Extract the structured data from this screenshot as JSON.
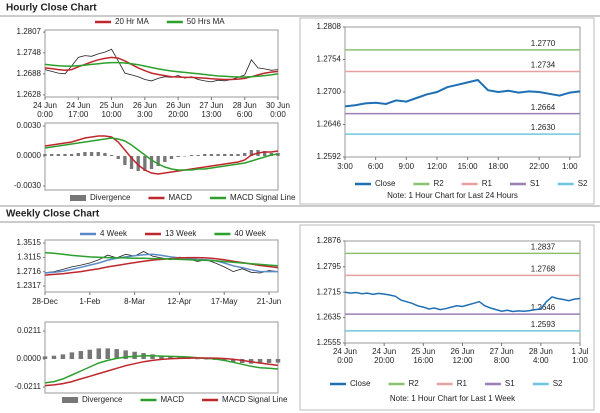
{
  "sections": [
    "Hourly Close Chart",
    "Weekly Close Chart"
  ],
  "chart_data": [
    {
      "type": "line",
      "legend": "top",
      "xlim": [
        0,
        35
      ],
      "ylim": [
        1.2622,
        1.2813
      ],
      "yticks": [
        1.2807,
        1.2748,
        1.2688,
        1.2628
      ],
      "xticks": [
        {
          "value": 0,
          "label": [
            "24 Jun",
            "0:00"
          ]
        },
        {
          "value": 5,
          "label": [
            "24 Jun",
            "17:00"
          ]
        },
        {
          "value": 10,
          "label": [
            "25 Jun",
            "10:00"
          ]
        },
        {
          "value": 15,
          "label": [
            "26 Jun",
            "3:00"
          ]
        },
        {
          "value": 20,
          "label": [
            "26 Jun",
            "20:00"
          ]
        },
        {
          "value": 25,
          "label": [
            "27 Jun",
            "13:00"
          ]
        },
        {
          "value": 30,
          "label": [
            "28 Jun",
            "6:00"
          ]
        },
        {
          "value": 35,
          "label": [
            "30 Jun",
            "0:00"
          ]
        }
      ],
      "series": [
        {
          "color": "#222222",
          "values": [
            1.27,
            1.2695,
            1.269,
            1.2688,
            1.271,
            1.2735,
            1.274,
            1.2738,
            1.2745,
            1.275,
            1.2758,
            1.2725,
            1.269,
            1.2685,
            1.268,
            1.2672,
            1.2668,
            1.2675,
            1.268,
            1.2678,
            1.2683,
            1.2676,
            1.268,
            1.2672,
            1.2668,
            1.2665,
            1.267,
            1.2668,
            1.2672,
            1.2678,
            1.2685,
            1.2728,
            1.2705,
            1.2702,
            1.2698,
            1.27
          ]
        },
        {
          "name": "20 Hr MA",
          "color": "#c0272d",
          "values": [
            1.2705,
            1.2703,
            1.27,
            1.2698,
            1.27,
            1.2708,
            1.2715,
            1.2722,
            1.2728,
            1.2732,
            1.2735,
            1.2733,
            1.2725,
            1.2715,
            1.2705,
            1.2697,
            1.269,
            1.2686,
            1.2683,
            1.268,
            1.2679,
            1.2678,
            1.2678,
            1.2677,
            1.2676,
            1.2674,
            1.2673,
            1.2672,
            1.2672,
            1.2673,
            1.2675,
            1.268,
            1.2685,
            1.269,
            1.2693,
            1.2695
          ]
        },
        {
          "name": "50 Hrs MA",
          "color": "#2ca02c",
          "values": [
            1.2715,
            1.2713,
            1.2711,
            1.271,
            1.271,
            1.2711,
            1.2713,
            1.2715,
            1.2717,
            1.2719,
            1.272,
            1.272,
            1.2719,
            1.2717,
            1.2714,
            1.271,
            1.2706,
            1.2702,
            1.2699,
            1.2696,
            1.2694,
            1.2692,
            1.269,
            1.2688,
            1.2686,
            1.2684,
            1.2682,
            1.2681,
            1.268,
            1.2679,
            1.2679,
            1.268,
            1.2681,
            1.2683,
            1.2685,
            1.2688
          ]
        }
      ]
    },
    {
      "type": "line",
      "legend": "bottom",
      "xlim": [
        0,
        35
      ],
      "ylim": [
        -0.0034,
        0.0033
      ],
      "yticks": [
        {
          "value": 0.003,
          "label": "0.0030"
        },
        {
          "value": 0,
          "label": "0.0000"
        },
        {
          "value": -0.003,
          "label": "-0.0030"
        }
      ],
      "series": [
        {
          "name": "Divergence",
          "type": "bar",
          "color": "#777777",
          "values": [
            0.0002,
            0.0002,
            0.0002,
            0.0002,
            0.0002,
            0.0003,
            0.0004,
            0.0004,
            0.0004,
            0.0003,
            0.0001,
            -0.0003,
            -0.0009,
            -0.0013,
            -0.0015,
            -0.0015,
            -0.0013,
            -0.001,
            -0.0006,
            -0.0003,
            -0.0001,
            0.0,
            0.0001,
            0.0001,
            0.0002,
            0.0002,
            0.0002,
            0.0002,
            0.0002,
            0.0002,
            0.0003,
            0.0006,
            0.0006,
            0.0005,
            0.0003,
            0.0003
          ]
        },
        {
          "name": "MACD",
          "color": "#c0272d",
          "values": [
            0.001,
            0.0011,
            0.0012,
            0.0013,
            0.0014,
            0.0016,
            0.0018,
            0.0019,
            0.002,
            0.002,
            0.0019,
            0.0014,
            0.0006,
            -0.0002,
            -0.0009,
            -0.0014,
            -0.0017,
            -0.0018,
            -0.0017,
            -0.0016,
            -0.0015,
            -0.0014,
            -0.0013,
            -0.0012,
            -0.0011,
            -0.001,
            -0.0009,
            -0.0008,
            -0.0007,
            -0.0006,
            -0.0004,
            0.0001,
            0.0003,
            0.0004,
            0.0004,
            0.0005
          ]
        },
        {
          "name": "MACD Signal Line",
          "color": "#2ca02c",
          "values": [
            0.0008,
            0.0009,
            0.001,
            0.0011,
            0.0012,
            0.0013,
            0.0014,
            0.0015,
            0.0016,
            0.0017,
            0.0018,
            0.0017,
            0.0015,
            0.0011,
            0.0006,
            0.0001,
            -0.0004,
            -0.0008,
            -0.0011,
            -0.0013,
            -0.0014,
            -0.0014,
            -0.0014,
            -0.0013,
            -0.0013,
            -0.0012,
            -0.0011,
            -0.001,
            -0.0009,
            -0.0008,
            -0.0007,
            -0.0005,
            -0.0003,
            -0.0001,
            0.0001,
            0.0002
          ]
        }
      ]
    },
    {
      "type": "line",
      "legend": "bottom",
      "note": "Note: 1 Hour Chart for Last 24 Hours",
      "xlim": [
        0,
        23
      ],
      "ylim": [
        1.2592,
        1.2808
      ],
      "yticks": [
        1.2808,
        1.2754,
        {
          "value": 1.27,
          "label": "1.2700"
        },
        1.2646,
        1.2592
      ],
      "xticks": [
        {
          "value": 0,
          "label": "3:00"
        },
        {
          "value": 3,
          "label": "6:00"
        },
        {
          "value": 6,
          "label": "9:00"
        },
        {
          "value": 9,
          "label": "12:00"
        },
        {
          "value": 12,
          "label": "15:00"
        },
        {
          "value": 15,
          "label": "18:00"
        },
        {
          "value": 19,
          "label": "22:00"
        },
        {
          "value": 22,
          "label": "1:00"
        }
      ],
      "series": [
        {
          "name": "Close",
          "color": "#1f6fb5",
          "width": 2,
          "values": [
            1.2676,
            1.2678,
            1.2681,
            1.2682,
            1.268,
            1.2686,
            1.2684,
            1.269,
            1.2696,
            1.27,
            1.2708,
            1.2712,
            1.2716,
            1.272,
            1.2703,
            1.27,
            1.2702,
            1.2699,
            1.2701,
            1.27,
            1.2697,
            1.2694,
            1.2699,
            1.2701
          ]
        }
      ],
      "levels": {
        "names": [
          "R2",
          "R1",
          "S1",
          "S2"
        ],
        "colors": [
          "#8dc26f",
          "#e8a0a0",
          "#9b7fb5",
          "#6ec6e0"
        ],
        "values": [
          1.277,
          1.2734,
          1.2664,
          1.263
        ],
        "value_labels": [
          "1.2770",
          "1.2734",
          "1.2664",
          "1.2630"
        ]
      }
    },
    {
      "type": "line",
      "legend": "top",
      "xlim": [
        0,
        26
      ],
      "ylim": [
        1.215,
        1.36
      ],
      "yticks": [
        1.3515,
        1.3115,
        1.2716,
        1.2317
      ],
      "xticks": [
        {
          "value": 0,
          "label": "28-Dec"
        },
        {
          "value": 5,
          "label": "1-Feb"
        },
        {
          "value": 10,
          "label": "8-Mar"
        },
        {
          "value": 15,
          "label": "12-Apr"
        },
        {
          "value": 20,
          "label": "17-May"
        },
        {
          "value": 25,
          "label": "21-Jun"
        }
      ],
      "series": [
        {
          "color": "#222222",
          "values": [
            1.269,
            1.272,
            1.278,
            1.285,
            1.29,
            1.296,
            1.305,
            1.318,
            1.31,
            1.32,
            1.315,
            1.328,
            1.315,
            1.31,
            1.305,
            1.312,
            1.308,
            1.3,
            1.305,
            1.296,
            1.285,
            1.272,
            1.28,
            1.27,
            1.268,
            1.275,
            1.2716
          ]
        },
        {
          "name": "4 Week",
          "color": "#5b8ac9",
          "values": [
            1.268,
            1.27,
            1.273,
            1.278,
            1.284,
            1.29,
            1.296,
            1.304,
            1.309,
            1.313,
            1.316,
            1.319,
            1.32,
            1.317,
            1.313,
            1.31,
            1.309,
            1.306,
            1.305,
            1.302,
            1.296,
            1.288,
            1.283,
            1.277,
            1.272,
            1.272,
            1.272
          ]
        },
        {
          "name": "13 Week",
          "color": "#c0272d",
          "values": [
            1.262,
            1.264,
            1.266,
            1.269,
            1.272,
            1.276,
            1.28,
            1.285,
            1.289,
            1.293,
            1.297,
            1.301,
            1.304,
            1.306,
            1.308,
            1.31,
            1.311,
            1.311,
            1.31,
            1.308,
            1.305,
            1.301,
            1.297,
            1.293,
            1.289,
            1.286,
            1.283
          ]
        },
        {
          "name": "40 Week",
          "color": "#2ca02c",
          "values": [
            1.325,
            1.323,
            1.32,
            1.317,
            1.315,
            1.313,
            1.312,
            1.311,
            1.31,
            1.31,
            1.309,
            1.309,
            1.308,
            1.308,
            1.307,
            1.306,
            1.305,
            1.304,
            1.303,
            1.302,
            1.3,
            1.298,
            1.296,
            1.294,
            1.292,
            1.29,
            1.288
          ]
        }
      ]
    },
    {
      "type": "line",
      "legend": "bottom",
      "xlim": [
        0,
        26
      ],
      "ylim": [
        -0.0256,
        0.0279
      ],
      "yticks": [
        0.0211,
        {
          "value": 0,
          "label": "0.0000"
        },
        -0.0211
      ],
      "series": [
        {
          "name": "Divergence",
          "type": "bar",
          "color": "#777777",
          "values": [
            0.002,
            0.0025,
            0.0035,
            0.005,
            0.006,
            0.007,
            0.008,
            0.008,
            0.0075,
            0.0065,
            0.0055,
            0.0045,
            0.0035,
            0.0025,
            0.0018,
            0.0013,
            0.0008,
            0.0002,
            -0.0003,
            -0.0007,
            -0.0014,
            -0.0023,
            -0.003,
            -0.0035,
            -0.0035,
            -0.003,
            -0.0027
          ]
        },
        {
          "name": "MACD",
          "color": "#2ca02c",
          "values": [
            -0.018,
            -0.017,
            -0.015,
            -0.012,
            -0.009,
            -0.006,
            -0.003,
            -0.001,
            0.0005,
            0.0015,
            0.002,
            0.0025,
            0.0025,
            0.0022,
            0.002,
            0.0018,
            0.0015,
            0.001,
            0.0005,
            0.0,
            -0.001,
            -0.0025,
            -0.004,
            -0.0055,
            -0.0065,
            -0.007,
            -0.0075
          ]
        },
        {
          "name": "MACD Signal Line",
          "color": "#c0272d",
          "values": [
            -0.02,
            -0.0195,
            -0.0185,
            -0.017,
            -0.015,
            -0.013,
            -0.011,
            -0.009,
            -0.007,
            -0.005,
            -0.0035,
            -0.002,
            -0.001,
            -0.0003,
            0.0002,
            0.0005,
            0.0007,
            0.0008,
            0.0008,
            0.0007,
            0.0004,
            -0.0002,
            -0.001,
            -0.002,
            -0.003,
            -0.004,
            -0.0048
          ]
        }
      ]
    },
    {
      "type": "line",
      "legend": "bottom",
      "note": "Note: 1 Hour Chart for Last 1 Week",
      "xlim": [
        0,
        42
      ],
      "ylim": [
        1.2555,
        1.2876
      ],
      "yticks": [
        1.2876,
        1.2795,
        1.2715,
        1.2635,
        1.2555
      ],
      "xticks": [
        {
          "value": 0,
          "label": [
            "24 Jun",
            "0:00"
          ]
        },
        {
          "value": 7,
          "label": [
            "24 Jun",
            "20:00"
          ]
        },
        {
          "value": 14,
          "label": [
            "25 Jun",
            "16:00"
          ]
        },
        {
          "value": 21,
          "label": [
            "26 Jun",
            "12:00"
          ]
        },
        {
          "value": 28,
          "label": [
            "27 Jun",
            "8:00"
          ]
        },
        {
          "value": 35,
          "label": [
            "28 Jun",
            "4:00"
          ]
        },
        {
          "value": 42,
          "label": [
            "1 Jul",
            "1:00"
          ]
        }
      ],
      "series": [
        {
          "name": "Close",
          "color": "#1f6fb5",
          "width": 1.5,
          "values": [
            1.2715,
            1.2712,
            1.2714,
            1.271,
            1.2712,
            1.2708,
            1.2711,
            1.2709,
            1.2706,
            1.2702,
            1.269,
            1.2685,
            1.268,
            1.2672,
            1.2668,
            1.2662,
            1.2665,
            1.266,
            1.2663,
            1.2668,
            1.2672,
            1.267,
            1.2675,
            1.268,
            1.2685,
            1.2672,
            1.2665,
            1.266,
            1.2655,
            1.2658,
            1.2654,
            1.2656,
            1.2655,
            1.2657,
            1.266,
            1.2662,
            1.2685,
            1.27,
            1.2695,
            1.2692,
            1.2688,
            1.2693,
            1.2695
          ]
        }
      ],
      "levels": {
        "names": [
          "R2",
          "R1",
          "S1",
          "S2"
        ],
        "colors": [
          "#8dc26f",
          "#e8a0a0",
          "#9b7fb5",
          "#6ec6e0"
        ],
        "values": [
          1.2837,
          1.2768,
          1.2646,
          1.2593
        ],
        "value_labels": [
          "1.2837",
          "1.2768",
          "1.2646",
          "1.2593"
        ]
      }
    }
  ]
}
